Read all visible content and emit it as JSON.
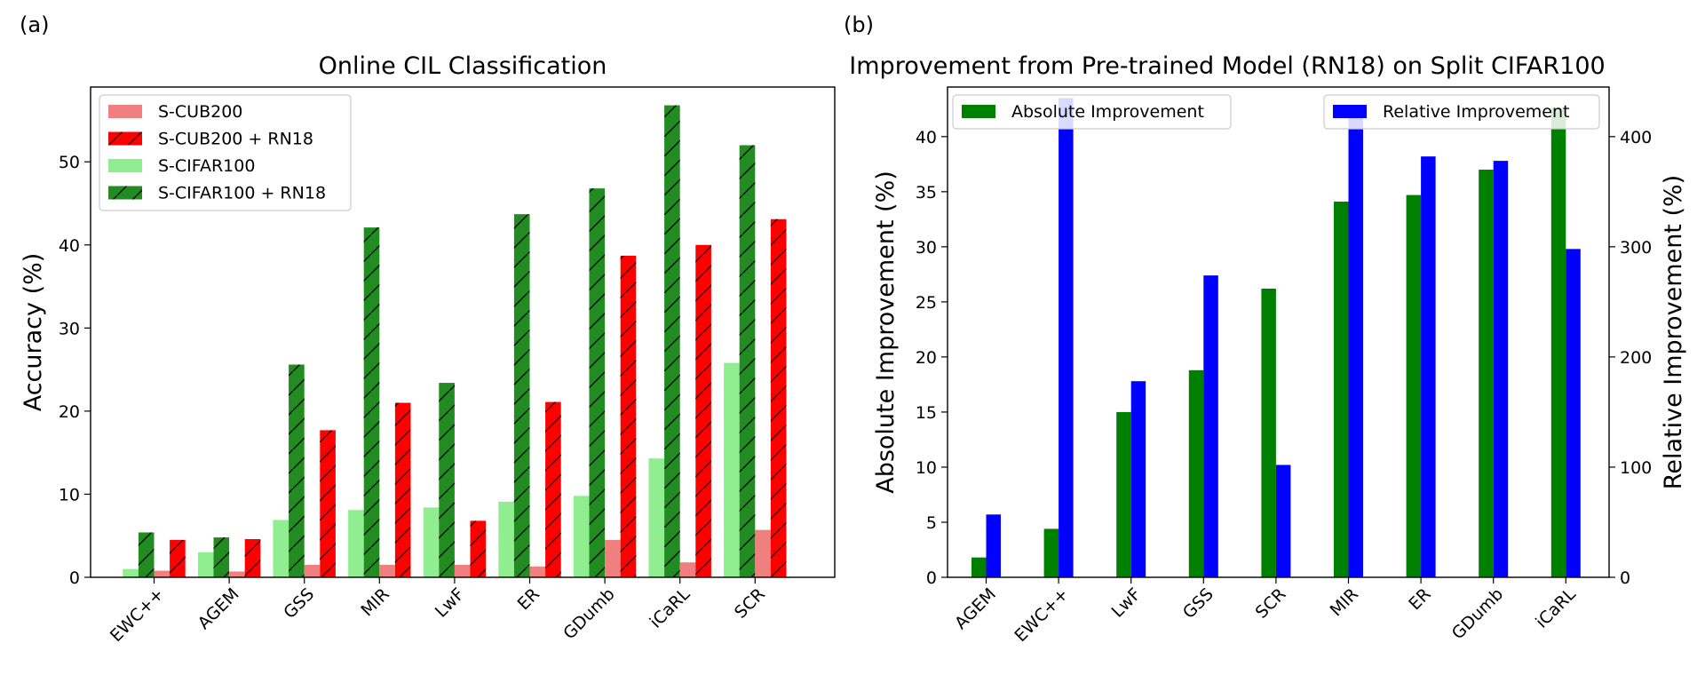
{
  "figure": {
    "panels": [
      "(a)",
      "(b)"
    ]
  },
  "chart_data": [
    {
      "type": "bar",
      "title": "Online CIL Classification",
      "xlabel": "",
      "ylabel": "Accuracy (%)",
      "ylim": [
        0,
        59
      ],
      "yticks": [
        0,
        10,
        20,
        30,
        40,
        50
      ],
      "grid": false,
      "legend_position": "top-left",
      "categories": [
        "EWC++",
        "AGEM",
        "GSS",
        "MIR",
        "LwF",
        "ER",
        "GDumb",
        "iCaRL",
        "SCR"
      ],
      "series": [
        {
          "name": "S-CUB200",
          "color": "#f08080",
          "hatch": false,
          "values": [
            0.8,
            0.7,
            1.5,
            1.5,
            1.5,
            1.3,
            4.5,
            1.8,
            5.7
          ]
        },
        {
          "name": "S-CUB200 + RN18",
          "color": "#ff0000",
          "hatch": true,
          "values": [
            4.5,
            4.6,
            17.7,
            21.0,
            6.8,
            21.1,
            38.7,
            40.0,
            43.1
          ]
        },
        {
          "name": "S-CIFAR100",
          "color": "#90ee90",
          "hatch": false,
          "values": [
            1.0,
            3.0,
            6.9,
            8.1,
            8.4,
            9.1,
            9.8,
            14.3,
            25.8
          ]
        },
        {
          "name": "S-CIFAR100 + RN18",
          "color": "#228b22",
          "hatch": true,
          "values": [
            5.4,
            4.8,
            25.6,
            42.1,
            23.4,
            43.7,
            46.8,
            56.8,
            52.0
          ]
        }
      ],
      "draw_order": [
        2,
        3,
        0,
        1
      ]
    },
    {
      "type": "bar",
      "title": "Improvement from Pre-trained Model (RN18) on Split CIFAR100",
      "xlabel": "",
      "ylabel": "Absolute Improvement (%)",
      "ylabel_right": "Relative Improvement (%)",
      "ylim": [
        0,
        44.5
      ],
      "ylim_right": [
        0,
        445
      ],
      "yticks": [
        0,
        5,
        10,
        15,
        20,
        25,
        30,
        35,
        40
      ],
      "yticks_right": [
        0,
        100,
        200,
        300,
        400
      ],
      "grid": false,
      "categories": [
        "AGEM",
        "EWC++",
        "LwF",
        "GSS",
        "SCR",
        "MIR",
        "ER",
        "GDumb",
        "iCaRL"
      ],
      "series": [
        {
          "name": "Absolute Improvement",
          "color": "#008000",
          "axis": "left",
          "legend_position": "top-left",
          "values": [
            1.8,
            4.4,
            15.0,
            18.8,
            26.2,
            34.1,
            34.7,
            37.0,
            42.6
          ]
        },
        {
          "name": "Relative Improvement",
          "color": "#0000ff",
          "axis": "right",
          "legend_position": "top-right",
          "values": [
            57,
            435,
            178,
            274,
            102,
            423,
            382,
            378,
            298
          ]
        }
      ]
    }
  ]
}
